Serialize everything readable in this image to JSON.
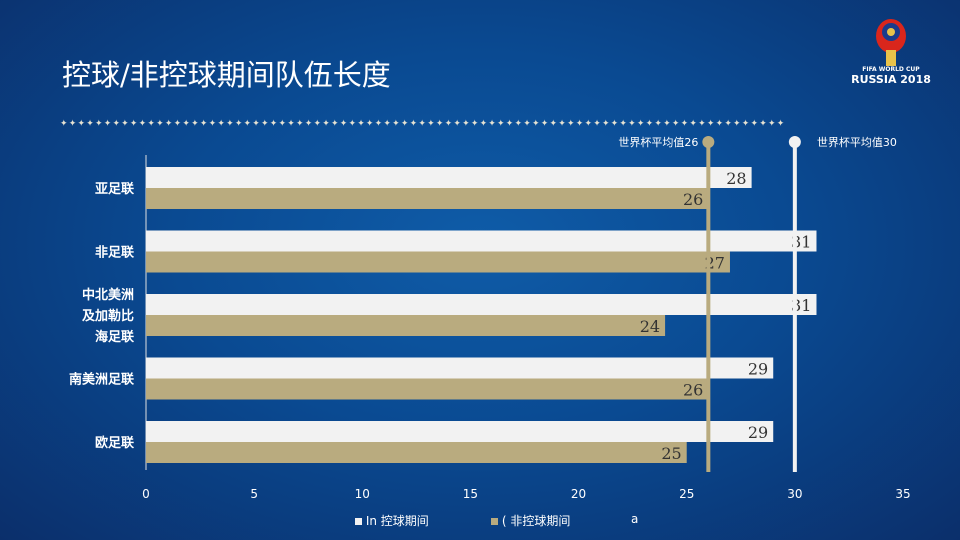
{
  "title": "控球/非控球期间队伍长度",
  "logo": {
    "line1": "FIFA WORLD CUP",
    "line2": "RUSSIA 2018"
  },
  "decor": "✦✦✦✦✦✦✦✦✦✦✦✦✦✦✦✦✦✦✦✦✦✦✦✦✦✦✦✦✦✦✦✦✦✦✦✦✦✦✦✦✦✦✦✦✦✦✦✦✦✦✦✦✦✦✦✦✦✦✦✦✦✦✦✦✦✦✦✦✦✦✦✦✦✦✦✦✦✦✦✦✦✦✦",
  "legend": {
    "item1": "In  控球期间",
    "item2": "( 非控球期间",
    "stray": "a"
  },
  "colors": {
    "in": "#f2f2f2",
    "out": "#b9ab7f",
    "ref_out": "#b9ab7f",
    "ref_in": "#f2f2f2"
  },
  "chart_data": {
    "type": "bar",
    "orientation": "horizontal",
    "categories": [
      "亚足联",
      "非足联",
      "中北美洲\n及加勒比\n海足联",
      "南美洲足联",
      "欧足联"
    ],
    "series": [
      {
        "name": "控球期间",
        "values": [
          28,
          31,
          31,
          29,
          29
        ]
      },
      {
        "name": "非控球期间",
        "values": [
          26,
          27,
          24,
          26,
          25
        ]
      }
    ],
    "xlim": [
      0,
      35
    ],
    "xticks": [
      0,
      5,
      10,
      15,
      20,
      25,
      30,
      35
    ],
    "reference_lines": [
      {
        "label": "世界杯平均值26",
        "value": 26,
        "color": "#b9ab7f"
      },
      {
        "label": "世界杯平均值30",
        "value": 30,
        "color": "#f2f2f2"
      }
    ],
    "legend_position": "bottom"
  }
}
